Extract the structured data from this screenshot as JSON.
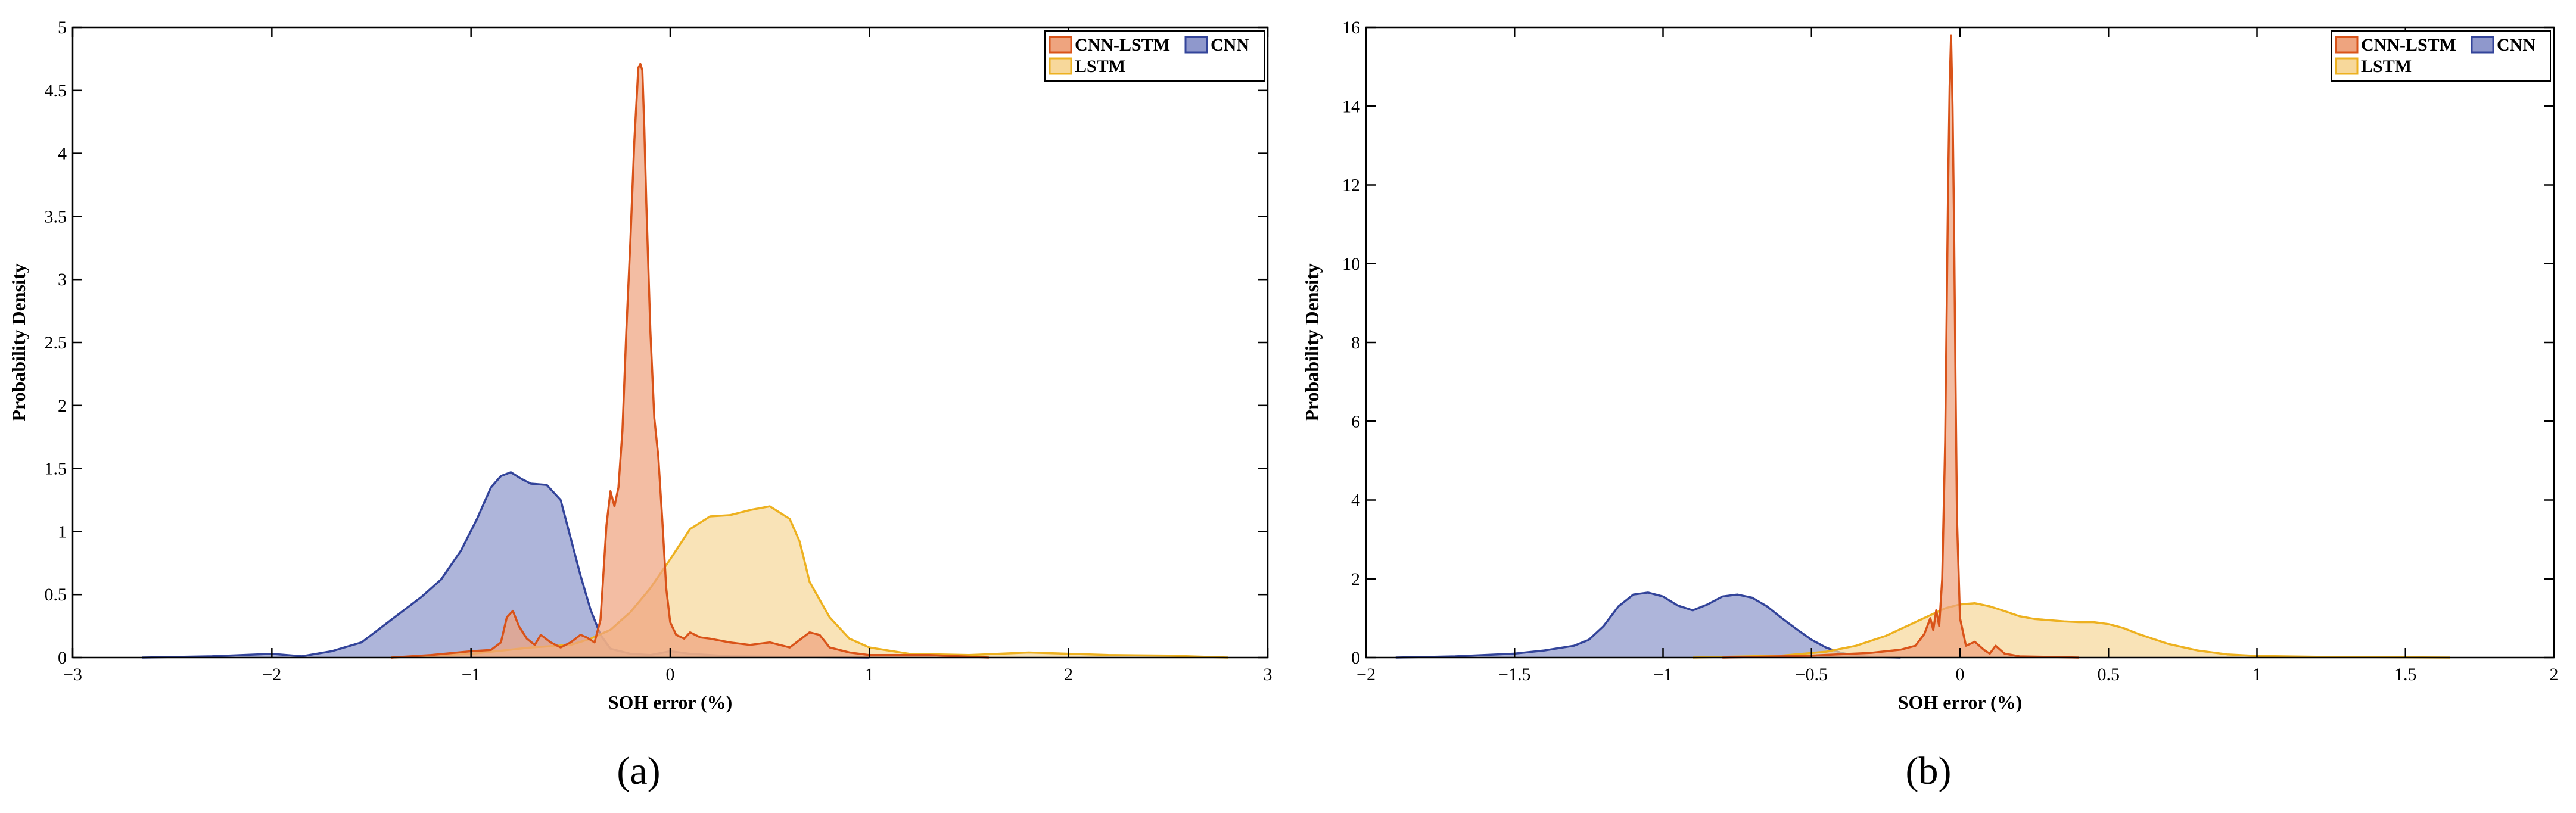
{
  "chart_data": [
    {
      "type": "area",
      "panel_label": "(a)",
      "xlabel": "SOH error (%)",
      "ylabel": "Probability Density",
      "xlim": [
        -3,
        3
      ],
      "ylim": [
        0,
        5
      ],
      "xticks": [
        -3,
        -2,
        -1,
        0,
        1,
        2,
        3
      ],
      "xtick_labels": [
        "−3",
        "−2",
        "−1",
        "0",
        "1",
        "2",
        "3"
      ],
      "yticks": [
        0,
        0.5,
        1,
        1.5,
        2,
        2.5,
        3,
        3.5,
        4,
        4.5,
        5
      ],
      "ytick_labels": [
        "0",
        "0.5",
        "1",
        "1.5",
        "2",
        "2.5",
        "3",
        "3.5",
        "4",
        "4.5",
        "5"
      ],
      "grid": false,
      "legend_position": "top-right",
      "series": [
        {
          "name": "CNN",
          "color": "#33449a",
          "fill": "#8f98cc",
          "x": [
            -2.65,
            -2.3,
            -2.0,
            -1.85,
            -1.7,
            -1.55,
            -1.45,
            -1.35,
            -1.25,
            -1.15,
            -1.05,
            -0.97,
            -0.9,
            -0.85,
            -0.8,
            -0.75,
            -0.7,
            -0.62,
            -0.55,
            -0.5,
            -0.45,
            -0.4,
            -0.35,
            -0.3,
            -0.2,
            -0.1,
            0.0,
            0.1,
            0.3,
            0.6,
            1.0
          ],
          "values": [
            0,
            0.01,
            0.03,
            0.01,
            0.05,
            0.12,
            0.24,
            0.36,
            0.48,
            0.62,
            0.85,
            1.1,
            1.35,
            1.44,
            1.47,
            1.42,
            1.38,
            1.37,
            1.25,
            0.95,
            0.65,
            0.38,
            0.18,
            0.07,
            0.03,
            0.02,
            0.05,
            0.03,
            0.01,
            0.005,
            0
          ]
        },
        {
          "name": "CNN-LSTM",
          "color": "#d95319",
          "fill": "#eea47f",
          "x": [
            -1.4,
            -1.2,
            -1.0,
            -0.9,
            -0.85,
            -0.82,
            -0.79,
            -0.76,
            -0.72,
            -0.68,
            -0.65,
            -0.6,
            -0.55,
            -0.5,
            -0.45,
            -0.42,
            -0.38,
            -0.35,
            -0.32,
            -0.3,
            -0.28,
            -0.26,
            -0.24,
            -0.22,
            -0.2,
            -0.18,
            -0.16,
            -0.15,
            -0.14,
            -0.13,
            -0.12,
            -0.1,
            -0.08,
            -0.06,
            -0.04,
            -0.02,
            0.0,
            0.03,
            0.07,
            0.1,
            0.15,
            0.2,
            0.3,
            0.4,
            0.5,
            0.6,
            0.7,
            0.75,
            0.8,
            0.9,
            1.0,
            1.3,
            1.6
          ],
          "values": [
            0,
            0.02,
            0.05,
            0.06,
            0.12,
            0.32,
            0.37,
            0.25,
            0.15,
            0.1,
            0.18,
            0.12,
            0.08,
            0.12,
            0.18,
            0.16,
            0.12,
            0.3,
            1.05,
            1.32,
            1.2,
            1.35,
            1.8,
            2.6,
            3.3,
            4.1,
            4.68,
            4.71,
            4.66,
            4.2,
            3.6,
            2.6,
            1.9,
            1.6,
            1.1,
            0.55,
            0.28,
            0.18,
            0.15,
            0.2,
            0.16,
            0.15,
            0.12,
            0.1,
            0.12,
            0.08,
            0.2,
            0.18,
            0.08,
            0.04,
            0.02,
            0.02,
            0
          ]
        },
        {
          "name": "LSTM",
          "color": "#edb120",
          "fill": "#f7d89b",
          "x": [
            -1.4,
            -1.0,
            -0.7,
            -0.5,
            -0.4,
            -0.3,
            -0.2,
            -0.1,
            0.0,
            0.1,
            0.2,
            0.3,
            0.4,
            0.5,
            0.6,
            0.65,
            0.7,
            0.8,
            0.9,
            1.0,
            1.2,
            1.5,
            1.8,
            2.2,
            2.5,
            2.8
          ],
          "values": [
            0,
            0.03,
            0.08,
            0.1,
            0.15,
            0.22,
            0.36,
            0.55,
            0.78,
            1.02,
            1.12,
            1.13,
            1.17,
            1.2,
            1.1,
            0.92,
            0.6,
            0.32,
            0.15,
            0.08,
            0.03,
            0.02,
            0.04,
            0.02,
            0.015,
            0
          ]
        }
      ]
    },
    {
      "type": "area",
      "panel_label": "(b)",
      "xlabel": "SOH error (%)",
      "ylabel": "Probability Density",
      "xlim": [
        -2,
        2
      ],
      "ylim": [
        0,
        16
      ],
      "xticks": [
        -2,
        -1.5,
        -1,
        -0.5,
        0,
        0.5,
        1,
        1.5,
        2
      ],
      "xtick_labels": [
        "−2",
        "−1.5",
        "−1",
        "−0.5",
        "0",
        "0.5",
        "1",
        "1.5",
        "2"
      ],
      "yticks": [
        0,
        2,
        4,
        6,
        8,
        10,
        12,
        14,
        16
      ],
      "ytick_labels": [
        "0",
        "2",
        "4",
        "6",
        "8",
        "10",
        "12",
        "14",
        "16"
      ],
      "grid": false,
      "legend_position": "top-right",
      "series": [
        {
          "name": "CNN",
          "color": "#33449a",
          "fill": "#8f98cc",
          "x": [
            -1.9,
            -1.7,
            -1.5,
            -1.4,
            -1.3,
            -1.25,
            -1.2,
            -1.15,
            -1.1,
            -1.05,
            -1.0,
            -0.95,
            -0.9,
            -0.85,
            -0.8,
            -0.75,
            -0.7,
            -0.65,
            -0.6,
            -0.55,
            -0.5,
            -0.45,
            -0.4,
            -0.35,
            -0.3,
            -0.2
          ],
          "values": [
            0,
            0.03,
            0.1,
            0.18,
            0.3,
            0.45,
            0.8,
            1.3,
            1.6,
            1.65,
            1.55,
            1.32,
            1.2,
            1.35,
            1.55,
            1.6,
            1.52,
            1.3,
            1.0,
            0.72,
            0.45,
            0.25,
            0.12,
            0.05,
            0.02,
            0
          ]
        },
        {
          "name": "CNN-LSTM",
          "color": "#d95319",
          "fill": "#eea47f",
          "x": [
            -0.8,
            -0.5,
            -0.3,
            -0.2,
            -0.15,
            -0.12,
            -0.1,
            -0.09,
            -0.08,
            -0.07,
            -0.06,
            -0.05,
            -0.04,
            -0.035,
            -0.03,
            -0.025,
            -0.02,
            -0.015,
            -0.01,
            0.0,
            0.02,
            0.05,
            0.08,
            0.1,
            0.12,
            0.15,
            0.2,
            0.4
          ],
          "values": [
            0,
            0.05,
            0.12,
            0.2,
            0.3,
            0.6,
            1.0,
            0.7,
            1.2,
            0.8,
            2.0,
            5.5,
            12.0,
            14.5,
            15.8,
            14.0,
            11.0,
            7.0,
            3.5,
            1.0,
            0.3,
            0.4,
            0.2,
            0.1,
            0.3,
            0.1,
            0.03,
            0
          ]
        },
        {
          "name": "LSTM",
          "color": "#edb120",
          "fill": "#f7d89b",
          "x": [
            -0.9,
            -0.6,
            -0.45,
            -0.35,
            -0.25,
            -0.15,
            -0.05,
            0.0,
            0.05,
            0.1,
            0.15,
            0.2,
            0.25,
            0.3,
            0.35,
            0.4,
            0.45,
            0.5,
            0.55,
            0.6,
            0.7,
            0.8,
            0.9,
            1.0,
            1.2,
            1.4,
            1.65
          ],
          "values": [
            0,
            0.05,
            0.15,
            0.3,
            0.55,
            0.9,
            1.25,
            1.35,
            1.38,
            1.3,
            1.18,
            1.05,
            0.98,
            0.95,
            0.92,
            0.9,
            0.9,
            0.85,
            0.75,
            0.6,
            0.35,
            0.18,
            0.08,
            0.04,
            0.02,
            0.01,
            0
          ]
        }
      ]
    }
  ]
}
